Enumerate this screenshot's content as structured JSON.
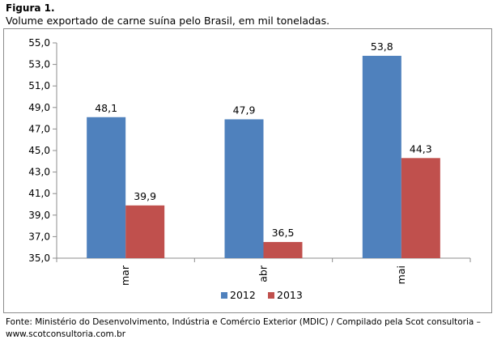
{
  "header": {
    "figure_label": "Figura 1.",
    "title": "Volume exportado de carne suína pelo Brasil, em mil toneladas."
  },
  "footer": {
    "source_line1": "Fonte: Ministério do Desenvolvimento, Indústria e Comércio Exterior (MDIC) / Compilado pela Scot consultoria –",
    "source_line2": "www.scotconsultoria.com.br"
  },
  "chart_data": {
    "type": "bar",
    "categories": [
      "mar",
      "abr",
      "mai"
    ],
    "series": [
      {
        "name": "2012",
        "values": [
          48.1,
          47.9,
          53.8
        ],
        "labels": [
          "48,1",
          "47,9",
          "53,8"
        ],
        "color": "#4f81bd"
      },
      {
        "name": "2013",
        "values": [
          39.9,
          36.5,
          44.3
        ],
        "labels": [
          "39,9",
          "36,5",
          "44,3"
        ],
        "color": "#c0504d"
      }
    ],
    "yticks": [
      35,
      37,
      39,
      41,
      43,
      45,
      47,
      49,
      51,
      53,
      55
    ],
    "ytick_labels": [
      "35,0",
      "37,0",
      "39,0",
      "41,0",
      "43,0",
      "45,0",
      "47,0",
      "49,0",
      "51,0",
      "53,0",
      "55,0"
    ],
    "ylim": [
      35,
      55
    ],
    "xlabel": "",
    "ylabel": "",
    "grid": false,
    "legend": "bottom"
  }
}
